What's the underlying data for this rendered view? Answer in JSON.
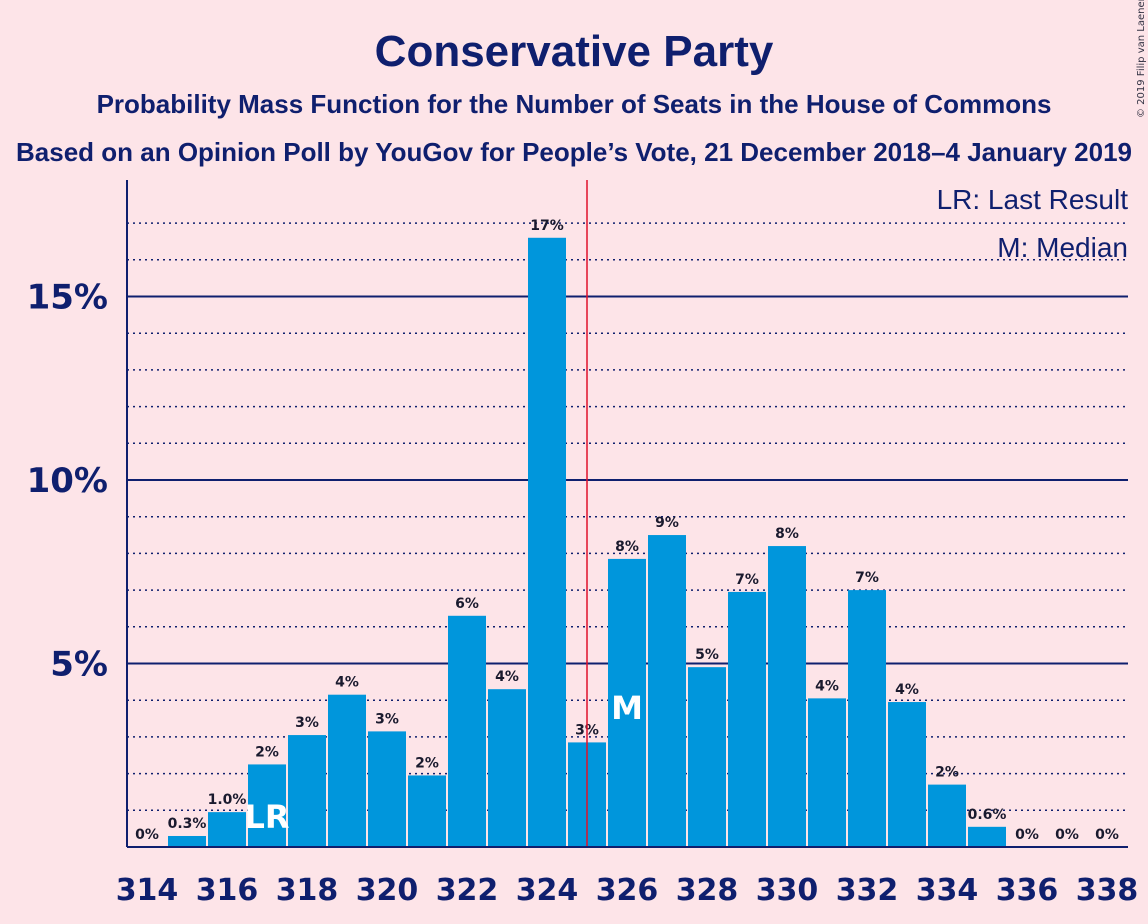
{
  "chart_data": {
    "type": "bar",
    "title": "Conservative Party",
    "subtitle": "Probability Mass Function for the Number of Seats in the House of Commons",
    "subtitle2": "Based on an Opinion Poll by YouGov for People’s Vote, 21 December 2018–4 January 2019",
    "copyright": "© 2019 Filip van Laenen",
    "legend": {
      "last_result": "LR: Last Result",
      "median": "M: Median",
      "placement": "top-right"
    },
    "ylim": [
      0,
      18
    ],
    "y_major_ticks": [
      {
        "value": 5,
        "label": "5%"
      },
      {
        "value": 10,
        "label": "10%"
      },
      {
        "value": 15,
        "label": "15%"
      }
    ],
    "y_minor_step": 1,
    "x_tick_labels": [
      "314",
      "316",
      "318",
      "320",
      "322",
      "324",
      "326",
      "328",
      "330",
      "332",
      "334",
      "336",
      "338"
    ],
    "categories": [
      314,
      315,
      316,
      317,
      318,
      319,
      320,
      321,
      322,
      323,
      324,
      325,
      326,
      327,
      328,
      329,
      330,
      331,
      332,
      333,
      334,
      335,
      336,
      337,
      338
    ],
    "values": [
      0,
      0.3,
      0.95,
      2.25,
      3.05,
      4.15,
      3.15,
      1.95,
      6.3,
      4.3,
      16.6,
      2.85,
      7.85,
      8.5,
      4.9,
      6.95,
      8.2,
      4.05,
      7.0,
      3.95,
      1.7,
      0.55,
      0,
      0,
      0
    ],
    "data_labels": [
      "0%",
      "0.3%",
      "1.0%",
      "2%",
      "3%",
      "4%",
      "3%",
      "2%",
      "6%",
      "4%",
      "17%",
      "3%",
      "8%",
      "9%",
      "5%",
      "7%",
      "8%",
      "4%",
      "7%",
      "4%",
      "2%",
      "0.6%",
      "0%",
      "0%",
      "0%"
    ],
    "last_result": {
      "seat": 317,
      "label": "LR"
    },
    "median": {
      "seat": 326,
      "label": "M"
    },
    "majority_line_seat": 325.5,
    "colors": {
      "bar": "#0096dc",
      "axis": "#0f1f6e",
      "majority_line": "#e0102a",
      "background": "#fde4e8"
    }
  }
}
